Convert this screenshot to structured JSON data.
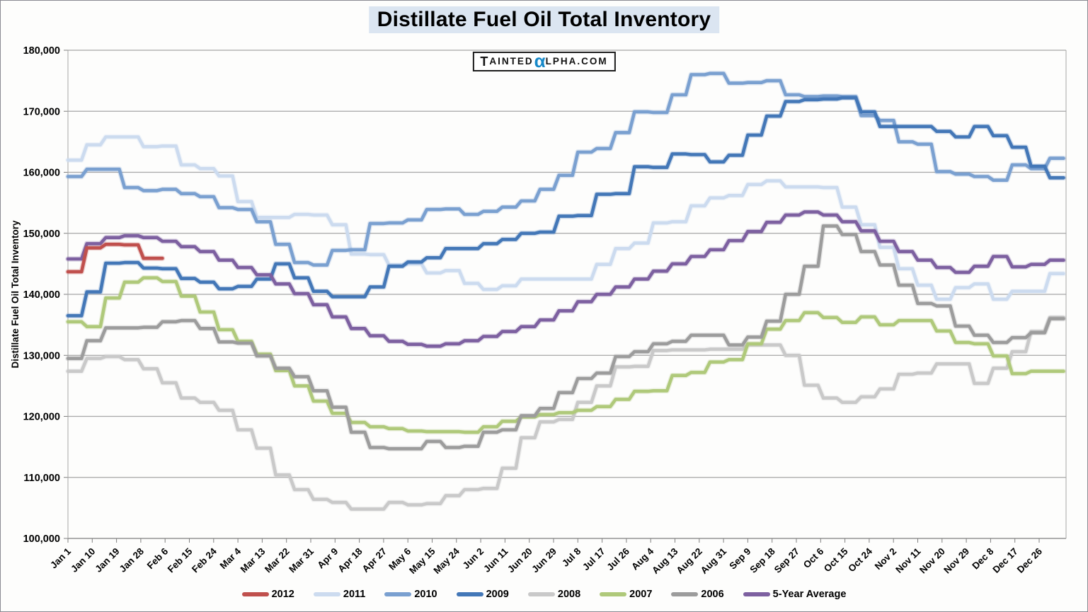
{
  "title": "Distillate Fuel Oil Total Inventory",
  "watermark": {
    "part1": "T",
    "part2": "AINTED",
    "alpha": "α",
    "part3": "LPHA.COM",
    "alpha_color": "#1789C9"
  },
  "colors": {
    "grid": "#A6A6A6",
    "axis": "#7F7F7F",
    "title_highlight": "#DBE5F1"
  },
  "y_axis": {
    "title": "Distillate Fuel Oil Total Inventory",
    "min": 100000,
    "max": 180000,
    "step": 10000,
    "tick_labels": [
      "100,000",
      "110,000",
      "120,000",
      "130,000",
      "140,000",
      "150,000",
      "160,000",
      "170,000",
      "180,000"
    ]
  },
  "x_axis": {
    "ticks": [
      {
        "label": "Jan 1",
        "day": 0
      },
      {
        "label": "Jan 10",
        "day": 9
      },
      {
        "label": "Jan 19",
        "day": 18
      },
      {
        "label": "Jan 28",
        "day": 27
      },
      {
        "label": "Feb 6",
        "day": 36
      },
      {
        "label": "Feb 15",
        "day": 45
      },
      {
        "label": "Feb 24",
        "day": 54
      },
      {
        "label": "Mar 4",
        "day": 63
      },
      {
        "label": "Mar 13",
        "day": 72
      },
      {
        "label": "Mar 22",
        "day": 81
      },
      {
        "label": "Mar 31",
        "day": 90
      },
      {
        "label": "Apr 9",
        "day": 99
      },
      {
        "label": "Apr 18",
        "day": 108
      },
      {
        "label": "Apr 27",
        "day": 117
      },
      {
        "label": "May 6",
        "day": 126
      },
      {
        "label": "May 15",
        "day": 135
      },
      {
        "label": "May 24",
        "day": 144
      },
      {
        "label": "Jun 2",
        "day": 153
      },
      {
        "label": "Jun 11",
        "day": 162
      },
      {
        "label": "Jun 20",
        "day": 171
      },
      {
        "label": "Jun 29",
        "day": 180
      },
      {
        "label": "Jul 8",
        "day": 189
      },
      {
        "label": "Jul 17",
        "day": 198
      },
      {
        "label": "Jul 26",
        "day": 207
      },
      {
        "label": "Aug 4",
        "day": 216
      },
      {
        "label": "Aug 13",
        "day": 225
      },
      {
        "label": "Aug 22",
        "day": 234
      },
      {
        "label": "Aug 31",
        "day": 243
      },
      {
        "label": "Sep 9",
        "day": 252
      },
      {
        "label": "Sep 18",
        "day": 261
      },
      {
        "label": "Sep 27",
        "day": 270
      },
      {
        "label": "Oct 6",
        "day": 279
      },
      {
        "label": "Oct 15",
        "day": 288
      },
      {
        "label": "Oct 24",
        "day": 297
      },
      {
        "label": "Nov 2",
        "day": 306
      },
      {
        "label": "Nov 11",
        "day": 315
      },
      {
        "label": "Nov 20",
        "day": 324
      },
      {
        "label": "Nov 29",
        "day": 333
      },
      {
        "label": "Dec 8",
        "day": 342
      },
      {
        "label": "Dec 17",
        "day": 351
      },
      {
        "label": "Dec 26",
        "day": 360
      }
    ]
  },
  "legend_order": [
    "2012",
    "2011",
    "2010",
    "2009",
    "2008",
    "2007",
    "2006",
    "5-Year Average"
  ],
  "chart_data": {
    "type": "line",
    "title": "Distillate Fuel Oil Total Inventory",
    "ylabel": "Distillate Fuel Oil Total Inventory",
    "ylim": [
      100000,
      180000
    ],
    "grid": "horizontal",
    "legend_position": "bottom",
    "x_unit": "weeks (values held flat for each week, plotted Jan 1 - Dec 31)",
    "week_length_days": 7,
    "z_order": [
      "2008",
      "2007",
      "2006",
      "2011",
      "2010",
      "2009",
      "5-Year Average",
      "2012"
    ],
    "series": [
      {
        "name": "2012",
        "color": "#C0504D",
        "values": [
          143700,
          147600,
          148200,
          148100,
          145900
        ]
      },
      {
        "name": "2011",
        "color": "#CCDBEF",
        "values": [
          162000,
          164500,
          165800,
          165800,
          164200,
          164300,
          161200,
          160600,
          159400,
          155200,
          152600,
          152600,
          153100,
          153000,
          151400,
          146600,
          146500,
          144800,
          145000,
          143500,
          143900,
          141800,
          140800,
          141400,
          142500,
          142500,
          142500,
          142500,
          144900,
          147500,
          148400,
          151700,
          151900,
          154500,
          155800,
          156200,
          158000,
          158600,
          157600,
          157600,
          157500,
          154300,
          151400,
          147700,
          144200,
          141500,
          139200,
          141100,
          141700,
          139200,
          140500,
          140500,
          143400
        ]
      },
      {
        "name": "2010",
        "color": "#7AA0D0",
        "values": [
          159300,
          160500,
          160500,
          157500,
          157000,
          157200,
          156500,
          156000,
          154200,
          153900,
          151900,
          148200,
          145200,
          144800,
          147200,
          147300,
          151600,
          151700,
          152200,
          153900,
          154000,
          153100,
          153600,
          154300,
          155300,
          157200,
          159500,
          163300,
          163900,
          166500,
          169900,
          169800,
          172700,
          176000,
          176200,
          174600,
          174700,
          175000,
          172700,
          172400,
          172500,
          172400,
          169300,
          168500,
          165000,
          164600,
          160100,
          159700,
          159300,
          158700,
          161200,
          160600,
          162300
        ]
      },
      {
        "name": "2009",
        "color": "#4377B7",
        "values": [
          136500,
          140400,
          145100,
          145200,
          144300,
          144200,
          142600,
          142000,
          140900,
          141300,
          142500,
          145000,
          142700,
          140500,
          139600,
          139600,
          141200,
          144600,
          145300,
          146000,
          147500,
          147500,
          148300,
          149000,
          150000,
          150200,
          152800,
          152900,
          156400,
          156500,
          160900,
          160800,
          163000,
          162900,
          161700,
          162800,
          166100,
          169200,
          171600,
          171900,
          172000,
          172200,
          169900,
          167500,
          167500,
          167500,
          166700,
          165800,
          167500,
          166000,
          164100,
          161000,
          159100
        ]
      },
      {
        "name": "2008",
        "color": "#C9C9C9",
        "values": [
          127400,
          129500,
          129800,
          129300,
          127800,
          125500,
          123000,
          122300,
          121000,
          117800,
          114800,
          110400,
          108000,
          106400,
          105900,
          104800,
          104800,
          105900,
          105500,
          105700,
          107000,
          108000,
          108200,
          111500,
          116500,
          119100,
          119500,
          122300,
          125000,
          128100,
          128200,
          130800,
          130900,
          130900,
          131000,
          131000,
          131700,
          131700,
          130000,
          125100,
          123000,
          122300,
          123200,
          124500,
          126900,
          127100,
          128600,
          128600,
          125400,
          127900,
          130600,
          133900,
          136200
        ]
      },
      {
        "name": "2007",
        "color": "#AFC97A",
        "values": [
          135500,
          134700,
          139400,
          142000,
          142700,
          142100,
          139700,
          137100,
          134200,
          132300,
          130200,
          127500,
          125000,
          122500,
          120500,
          119000,
          118300,
          118000,
          117600,
          117500,
          117500,
          117400,
          118300,
          119200,
          119900,
          120300,
          120600,
          121000,
          121600,
          122800,
          124100,
          124200,
          126700,
          127200,
          128900,
          129300,
          131900,
          134300,
          135700,
          137000,
          136200,
          135400,
          136300,
          135000,
          135700,
          135700,
          134000,
          132100,
          131900,
          129900,
          127000,
          127400,
          127400
        ]
      },
      {
        "name": "2006",
        "color": "#9C9C9C",
        "values": [
          129500,
          132400,
          134500,
          134500,
          134600,
          135500,
          135700,
          134400,
          132200,
          132000,
          129900,
          127900,
          126500,
          124200,
          121500,
          117400,
          114900,
          114700,
          114700,
          115900,
          114900,
          115100,
          117400,
          117800,
          120100,
          121300,
          123900,
          126200,
          127100,
          129800,
          130600,
          131900,
          132300,
          133300,
          133300,
          131700,
          133000,
          135600,
          140000,
          144600,
          151200,
          149800,
          147000,
          144800,
          141500,
          138500,
          138100,
          134800,
          133300,
          132100,
          132900,
          133700,
          136000
        ]
      },
      {
        "name": "5-Year Average",
        "color": "#7D60A0",
        "values": [
          145800,
          148300,
          149300,
          149600,
          149300,
          148700,
          147800,
          147000,
          145600,
          144400,
          143200,
          141700,
          140100,
          138300,
          136300,
          134400,
          133200,
          132300,
          131800,
          131500,
          131900,
          132400,
          133100,
          133900,
          134700,
          135800,
          137300,
          138800,
          140000,
          141200,
          142500,
          143800,
          145000,
          146200,
          147300,
          148800,
          150300,
          151800,
          153000,
          153500,
          153000,
          151900,
          150400,
          148700,
          147000,
          145600,
          144400,
          143600,
          144600,
          146200,
          144500,
          144900,
          145600
        ]
      }
    ]
  }
}
